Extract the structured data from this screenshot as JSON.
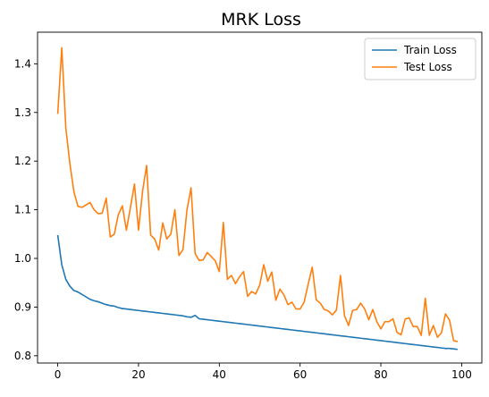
{
  "chart_data": {
    "type": "line",
    "title": "MRK Loss",
    "xlabel": "",
    "ylabel": "",
    "xlim": [
      -5,
      105
    ],
    "ylim": [
      0.785,
      1.465
    ],
    "xticks": [
      0,
      20,
      40,
      60,
      80,
      100
    ],
    "yticks": [
      0.8,
      0.9,
      1.0,
      1.1,
      1.2,
      1.3,
      1.4
    ],
    "ytick_labels": [
      "0.8",
      "0.9",
      "1.0",
      "1.1",
      "1.2",
      "1.3",
      "1.4"
    ],
    "grid": false,
    "legend_position": "top-right",
    "series": [
      {
        "name": "Train Loss",
        "color": "#1f77b4",
        "values": [
          1.048,
          0.987,
          0.957,
          0.943,
          0.934,
          0.931,
          0.926,
          0.921,
          0.916,
          0.913,
          0.911,
          0.908,
          0.905,
          0.903,
          0.902,
          0.899,
          0.897,
          0.896,
          0.895,
          0.894,
          0.893,
          0.892,
          0.891,
          0.89,
          0.889,
          0.888,
          0.887,
          0.886,
          0.885,
          0.884,
          0.883,
          0.882,
          0.88,
          0.879,
          0.883,
          0.876,
          0.875,
          0.874,
          0.873,
          0.872,
          0.871,
          0.87,
          0.869,
          0.868,
          0.867,
          0.866,
          0.865,
          0.864,
          0.863,
          0.862,
          0.861,
          0.86,
          0.859,
          0.858,
          0.857,
          0.856,
          0.855,
          0.854,
          0.853,
          0.852,
          0.851,
          0.85,
          0.849,
          0.848,
          0.847,
          0.846,
          0.845,
          0.844,
          0.843,
          0.842,
          0.841,
          0.84,
          0.839,
          0.838,
          0.837,
          0.836,
          0.835,
          0.834,
          0.833,
          0.832,
          0.831,
          0.83,
          0.829,
          0.828,
          0.827,
          0.826,
          0.825,
          0.824,
          0.823,
          0.822,
          0.821,
          0.82,
          0.819,
          0.818,
          0.817,
          0.816,
          0.815,
          0.815,
          0.814,
          0.813
        ]
      },
      {
        "name": "Test Loss",
        "color": "#ff7f0e",
        "values": [
          1.297,
          1.433,
          1.268,
          1.195,
          1.137,
          1.107,
          1.105,
          1.11,
          1.115,
          1.1,
          1.092,
          1.093,
          1.124,
          1.044,
          1.05,
          1.09,
          1.108,
          1.058,
          1.105,
          1.153,
          1.058,
          1.138,
          1.191,
          1.048,
          1.04,
          1.017,
          1.073,
          1.04,
          1.05,
          1.1,
          1.006,
          1.018,
          1.1,
          1.145,
          1.01,
          0.996,
          0.997,
          1.012,
          1.004,
          0.995,
          0.973,
          1.074,
          0.957,
          0.965,
          0.948,
          0.962,
          0.973,
          0.922,
          0.932,
          0.927,
          0.945,
          0.987,
          0.953,
          0.972,
          0.914,
          0.937,
          0.925,
          0.905,
          0.91,
          0.896,
          0.896,
          0.91,
          0.947,
          0.982,
          0.915,
          0.908,
          0.895,
          0.892,
          0.884,
          0.894,
          0.965,
          0.882,
          0.862,
          0.893,
          0.895,
          0.908,
          0.896,
          0.874,
          0.895,
          0.87,
          0.855,
          0.87,
          0.87,
          0.876,
          0.848,
          0.843,
          0.875,
          0.878,
          0.86,
          0.86,
          0.842,
          0.918,
          0.842,
          0.862,
          0.838,
          0.847,
          0.886,
          0.873,
          0.831,
          0.829
        ]
      }
    ]
  }
}
